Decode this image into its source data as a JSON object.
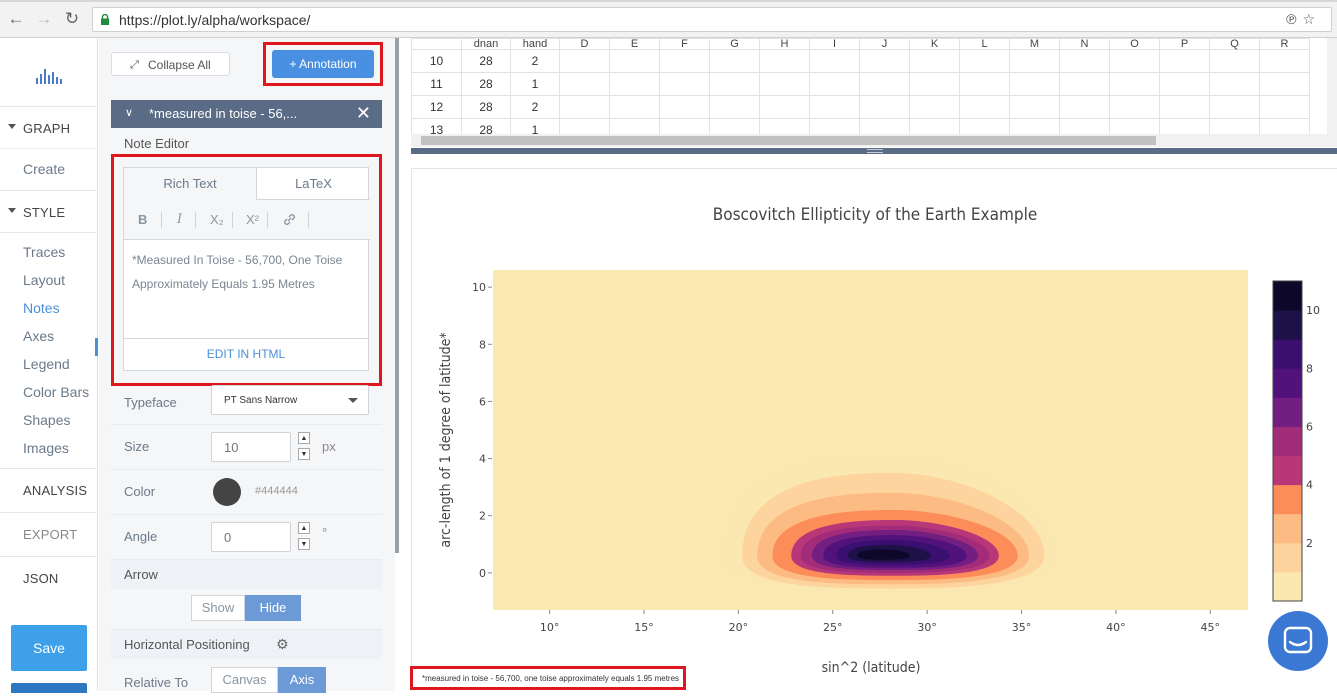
{
  "browser": {
    "url": "https://plot.ly/alpha/workspace/"
  },
  "sidebar": {
    "sections": [
      {
        "id": "graph",
        "label": "GRAPH",
        "caret": true
      },
      {
        "id": "style",
        "label": "STYLE",
        "caret": true
      },
      {
        "id": "analysis",
        "label": "ANALYSIS",
        "caret": false
      },
      {
        "id": "export",
        "label": "EXPORT",
        "caret": false
      },
      {
        "id": "json",
        "label": "JSON",
        "caret": false
      }
    ],
    "graph_items": [
      "Create"
    ],
    "style_items": [
      "Traces",
      "Layout",
      "Notes",
      "Axes",
      "Legend",
      "Color Bars",
      "Shapes",
      "Images"
    ],
    "active_item": "Notes",
    "save_label": "Save"
  },
  "panel": {
    "collapse_label": "Collapse All",
    "add_annotation_label": "+ Annotation",
    "note_title": "*measured in toise - 56,...",
    "note_editor_label": "Note Editor",
    "tabs": {
      "rich": "Rich Text",
      "latex": "LaTeX"
    },
    "format_buttons": [
      "B",
      "I",
      "X₂",
      "X²",
      "link"
    ],
    "note_text": "*Measured In Toise - 56,700, One Toise Approximately Equals 1.95 Metres",
    "edit_html_label": "EDIT IN HTML",
    "typeface_label": "Typeface",
    "typeface_value": "PT Sans Narrow",
    "size_label": "Size",
    "size_value": "10",
    "size_unit": "px",
    "color_label": "Color",
    "color_value": "#444444",
    "angle_label": "Angle",
    "angle_value": "0",
    "angle_unit": "°",
    "arrow_label": "Arrow",
    "arrow_options": [
      "Show",
      "Hide"
    ],
    "arrow_selected": "Hide",
    "hpos_label": "Horizontal Positioning",
    "relative_to_label": "Relative To",
    "relative_to_options": [
      "Canvas",
      "Axis"
    ],
    "relative_to_selected": "Axis"
  },
  "grid": {
    "columns": [
      "",
      "dnan",
      "hand",
      "D",
      "E",
      "F",
      "G",
      "H",
      "I",
      "J",
      "K",
      "L",
      "M",
      "N",
      "O",
      "P",
      "Q",
      "R"
    ],
    "rows": [
      [
        "10",
        "28",
        "2"
      ],
      [
        "11",
        "28",
        "1"
      ],
      [
        "12",
        "28",
        "2"
      ],
      [
        "13",
        "28",
        "1"
      ]
    ]
  },
  "chart_data": {
    "type": "heatmap",
    "subtype": "contour",
    "title": "Boscovitch Ellipticity of the Earth Example",
    "xlabel": "sin^2 (latitude)",
    "ylabel": "arc-length of 1 degree of latitude*",
    "xlim": [
      7,
      47
    ],
    "ylim": [
      -1.3,
      10.6
    ],
    "xticks": [
      "10°",
      "15°",
      "20°",
      "25°",
      "30°",
      "35°",
      "40°",
      "45°"
    ],
    "xtick_values": [
      10,
      15,
      20,
      25,
      30,
      35,
      40,
      45
    ],
    "yticks": [
      "0",
      "2",
      "4",
      "6",
      "8",
      "10"
    ],
    "ytick_values": [
      0,
      2,
      4,
      6,
      8,
      10
    ],
    "colorbar": {
      "ticks": [
        "2",
        "4",
        "6",
        "8",
        "10"
      ],
      "tick_values": [
        2,
        4,
        6,
        8,
        10
      ],
      "range": [
        0,
        11
      ],
      "colors": [
        "#fbe7b0",
        "#fdd49e",
        "#fdbb84",
        "#fc8d59",
        "#b73779",
        "#a22c7a",
        "#721f81",
        "#51127c",
        "#3b0f70",
        "#1d1147",
        "#0d0829"
      ]
    },
    "peak": {
      "x": 28,
      "y": 0.6
    },
    "background_color": "#fbe9b0"
  },
  "footnote": "*measured in toise - 56,700, one toise approximately equals 1.95 metres"
}
